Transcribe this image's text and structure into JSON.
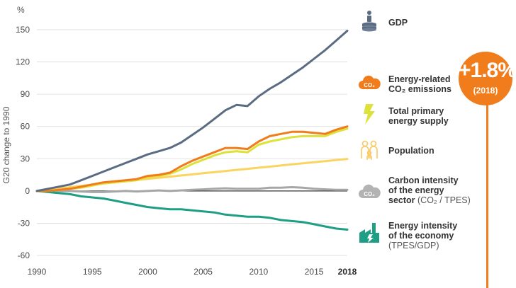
{
  "chart_data": {
    "type": "line",
    "ylabel": "G20 change to 1990",
    "yunit": "%",
    "xlim": [
      1990,
      2018
    ],
    "ylim": [
      -60,
      150
    ],
    "yticks": [
      150,
      120,
      90,
      60,
      30,
      0,
      -30,
      -60
    ],
    "xticks": [
      "1990",
      "1995",
      "2000",
      "2005",
      "2010",
      "2015",
      "2018"
    ],
    "x": [
      1990,
      1991,
      1992,
      1993,
      1994,
      1995,
      1996,
      1997,
      1998,
      1999,
      2000,
      2001,
      2002,
      2003,
      2004,
      2005,
      2006,
      2007,
      2008,
      2009,
      2010,
      2011,
      2012,
      2013,
      2014,
      2015,
      2016,
      2017,
      2018
    ],
    "series": [
      {
        "name": "GDP",
        "color": "#5b6c82",
        "values": [
          0,
          2,
          4,
          6,
          10,
          14,
          18,
          22,
          26,
          30,
          34,
          37,
          40,
          45,
          52,
          59,
          67,
          75,
          80,
          79,
          88,
          95,
          101,
          108,
          115,
          123,
          131,
          140,
          149
        ]
      },
      {
        "name": "Energy-related CO₂ emissions",
        "color": "#f07c1b",
        "values": [
          0,
          0,
          1,
          2,
          4,
          6,
          8,
          9,
          10,
          11,
          14,
          15,
          17,
          23,
          28,
          32,
          36,
          40,
          40,
          39,
          46,
          51,
          53,
          55,
          55,
          54,
          53,
          57,
          60
        ]
      },
      {
        "name": "Total primary energy supply",
        "color": "#dde23a",
        "values": [
          0,
          0,
          1,
          2,
          3,
          5,
          7,
          8,
          9,
          10,
          13,
          14,
          16,
          20,
          25,
          29,
          33,
          36,
          37,
          36,
          43,
          46,
          48,
          50,
          51,
          51,
          51,
          55,
          58
        ]
      },
      {
        "name": "Population",
        "color": "#f9d55f",
        "values": [
          0,
          1.2,
          2.4,
          3.5,
          4.7,
          5.8,
          6.9,
          8.0,
          9.1,
          10.1,
          11.2,
          12.3,
          13.3,
          14.4,
          15.4,
          16.5,
          17.5,
          18.5,
          19.6,
          20.6,
          21.6,
          22.6,
          23.7,
          24.7,
          25.7,
          26.7,
          27.7,
          28.8,
          29.8
        ]
      },
      {
        "name": "Carbon intensity of the energy sector",
        "color": "#a6a6a6",
        "values": [
          0,
          0,
          0,
          0,
          -0.5,
          -1,
          -1,
          -0.5,
          0,
          -0.5,
          0,
          0.5,
          0,
          0.5,
          1,
          1.5,
          2,
          2.5,
          2,
          2,
          2,
          3,
          3,
          3.5,
          3,
          2,
          1.5,
          1,
          1
        ]
      },
      {
        "name": "Energy intensity of the economy",
        "color": "#1e9e84",
        "values": [
          0,
          -1,
          -2,
          -3,
          -5,
          -6,
          -7,
          -9,
          -11,
          -13,
          -15,
          -16,
          -17,
          -17,
          -18,
          -19,
          -20,
          -22,
          -23,
          -24,
          -24,
          -25,
          -27,
          -28,
          -29,
          -31,
          -33,
          -35,
          -36
        ]
      }
    ]
  },
  "legend": {
    "gdp": "GDP",
    "co2_line1": "Energy-related",
    "co2_line2": "CO₂ emissions",
    "tpes_line1": "Total primary",
    "tpes_line2": "energy supply",
    "pop": "Population",
    "ci_line1": "Carbon intensity",
    "ci_line2": "of the energy",
    "ci_line3a": "sector",
    "ci_line3b": "(CO₂ / TPES)",
    "ei_line1": "Energy intensity",
    "ei_line2": "of the economy",
    "ei_line3": "(TPES/GDP)",
    "co2_icon_text": "CO₂",
    "ci_icon_text": "CO₂"
  },
  "badge": {
    "value": "+1.8%",
    "year": "(2018)"
  },
  "icons": {
    "gdp": "coin-stack-person-icon",
    "co2": "cloud-co2-icon",
    "tpes": "lightning-bolt-icon",
    "pop": "people-icon",
    "ci": "cloud-gray-co2-icon",
    "ei": "factory-bolt-icon"
  },
  "colors": {
    "accent": "#f07c1b",
    "gdp": "#5b6c82",
    "co2": "#f07c1b",
    "tpes": "#dde23a",
    "pop": "#f9d55f",
    "ci": "#a6a6a6",
    "ei": "#1e9e84"
  }
}
